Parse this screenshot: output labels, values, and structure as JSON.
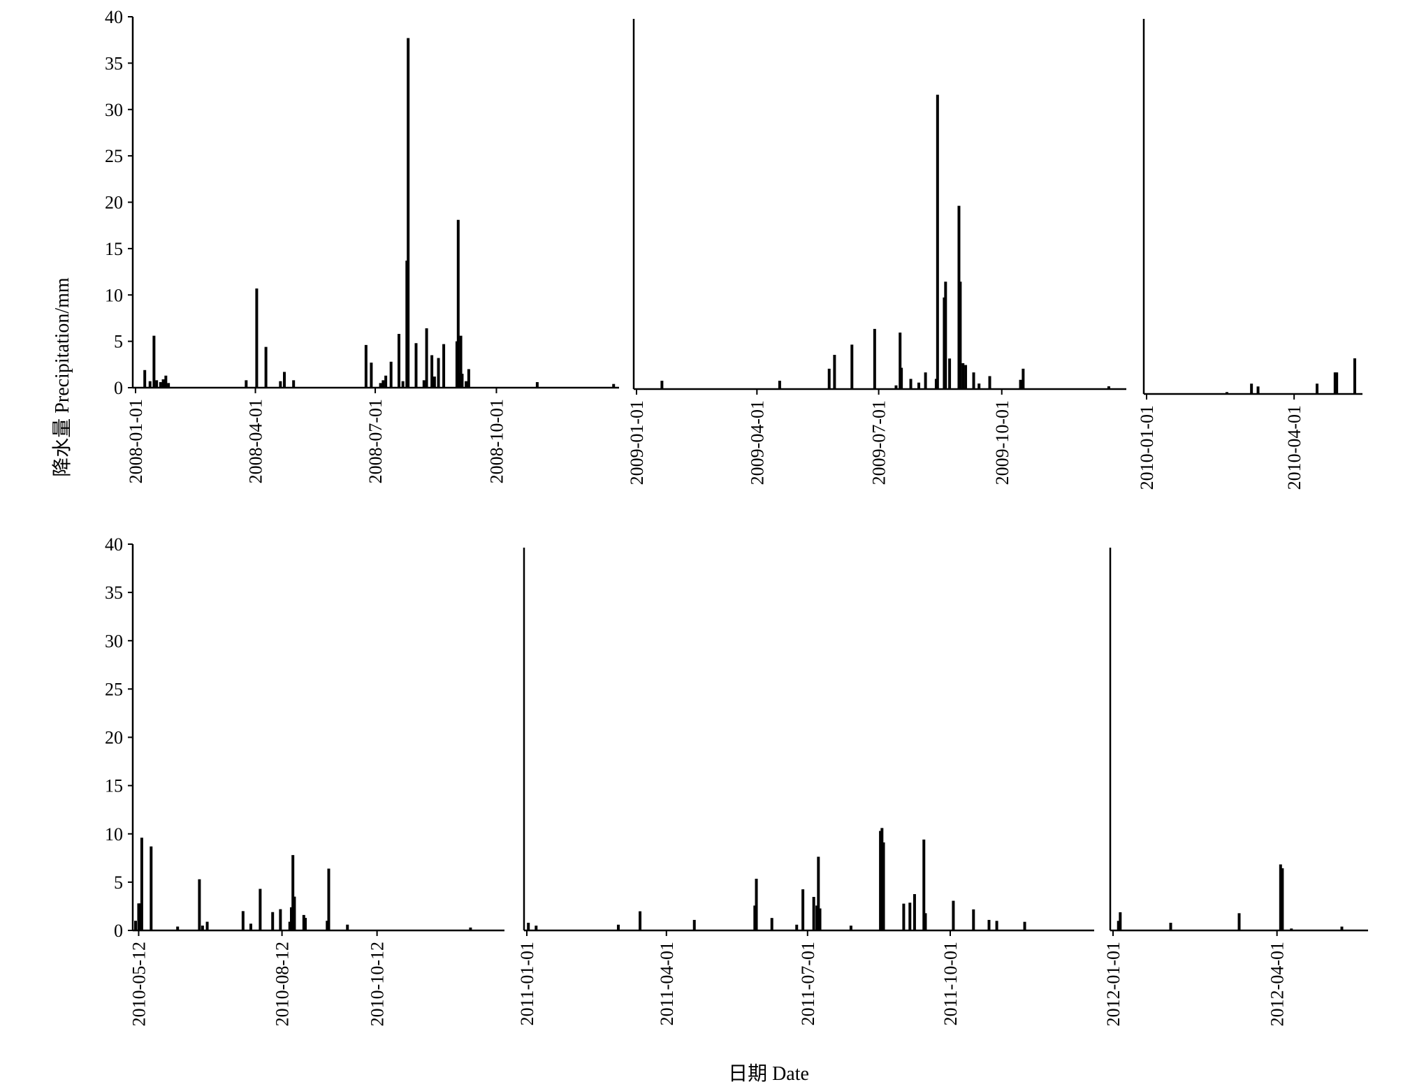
{
  "chart_data": {
    "type": "bar",
    "title": "",
    "ylabel": "降水量 Precipitation/mm",
    "xlabel": "日期 Date",
    "ylim": [
      0,
      40
    ],
    "y_ticks": [
      0,
      5,
      10,
      15,
      20,
      25,
      30,
      35,
      40
    ],
    "grid": false,
    "legend": "none",
    "bar_color": "#000000",
    "panels": [
      {
        "x_range": [
          "2008-01-01",
          "2008-12-31"
        ],
        "x_ticks": [
          "2008-01-01",
          "2008-04-01",
          "2008-07-01",
          "2008-10-01"
        ],
        "events": [
          {
            "x": "2008-01-08",
            "y": 1.9
          },
          {
            "x": "2008-01-12",
            "y": 0.7
          },
          {
            "x": "2008-01-15",
            "y": 5.6
          },
          {
            "x": "2008-01-17",
            "y": 0.8
          },
          {
            "x": "2008-01-20",
            "y": 0.6
          },
          {
            "x": "2008-01-22",
            "y": 0.9
          },
          {
            "x": "2008-01-24",
            "y": 1.3
          },
          {
            "x": "2008-01-26",
            "y": 0.5
          },
          {
            "x": "2008-03-25",
            "y": 0.8
          },
          {
            "x": "2008-04-02",
            "y": 10.7
          },
          {
            "x": "2008-04-09",
            "y": 4.4
          },
          {
            "x": "2008-04-20",
            "y": 0.7
          },
          {
            "x": "2008-04-23",
            "y": 1.7
          },
          {
            "x": "2008-04-30",
            "y": 0.8
          },
          {
            "x": "2008-06-24",
            "y": 4.6
          },
          {
            "x": "2008-06-28",
            "y": 2.7
          },
          {
            "x": "2008-07-05",
            "y": 0.5
          },
          {
            "x": "2008-07-07",
            "y": 0.8
          },
          {
            "x": "2008-07-09",
            "y": 1.3
          },
          {
            "x": "2008-07-13",
            "y": 2.8
          },
          {
            "x": "2008-07-19",
            "y": 5.8
          },
          {
            "x": "2008-07-22",
            "y": 0.7
          },
          {
            "x": "2008-07-25",
            "y": 13.7
          },
          {
            "x": "2008-07-26",
            "y": 37.7
          },
          {
            "x": "2008-08-01",
            "y": 4.8
          },
          {
            "x": "2008-08-07",
            "y": 0.8
          },
          {
            "x": "2008-08-09",
            "y": 6.4
          },
          {
            "x": "2008-08-13",
            "y": 3.5
          },
          {
            "x": "2008-08-15",
            "y": 1.2
          },
          {
            "x": "2008-08-18",
            "y": 3.2
          },
          {
            "x": "2008-08-22",
            "y": 4.7
          },
          {
            "x": "2008-09-01",
            "y": 5.0
          },
          {
            "x": "2008-09-02",
            "y": 18.1
          },
          {
            "x": "2008-09-03",
            "y": 1.6
          },
          {
            "x": "2008-09-04",
            "y": 5.6
          },
          {
            "x": "2008-09-05",
            "y": 1.5
          },
          {
            "x": "2008-09-08",
            "y": 0.7
          },
          {
            "x": "2008-09-10",
            "y": 2.0
          },
          {
            "x": "2008-11-01",
            "y": 0.6
          },
          {
            "x": "2008-12-29",
            "y": 0.4
          }
        ]
      },
      {
        "x_range": [
          "2009-01-01",
          "2009-12-31"
        ],
        "x_ticks": [
          "2009-01-01",
          "2009-04-01",
          "2009-07-01",
          "2009-10-01"
        ],
        "y_axis_clipped_label": "40",
        "events": [
          {
            "x": "2009-01-20",
            "y": 0.9
          },
          {
            "x": "2009-04-18",
            "y": 0.9
          },
          {
            "x": "2009-05-25",
            "y": 2.2
          },
          {
            "x": "2009-05-29",
            "y": 3.7
          },
          {
            "x": "2009-06-11",
            "y": 4.8
          },
          {
            "x": "2009-06-28",
            "y": 6.5
          },
          {
            "x": "2009-07-14",
            "y": 0.4
          },
          {
            "x": "2009-07-17",
            "y": 6.1
          },
          {
            "x": "2009-07-18",
            "y": 2.3
          },
          {
            "x": "2009-07-25",
            "y": 1.1
          },
          {
            "x": "2009-07-31",
            "y": 0.7
          },
          {
            "x": "2009-08-05",
            "y": 1.8
          },
          {
            "x": "2009-08-13",
            "y": 1.1
          },
          {
            "x": "2009-08-14",
            "y": 31.8
          },
          {
            "x": "2009-08-19",
            "y": 9.9
          },
          {
            "x": "2009-08-20",
            "y": 11.6
          },
          {
            "x": "2009-08-23",
            "y": 3.3
          },
          {
            "x": "2009-08-30",
            "y": 19.8
          },
          {
            "x": "2009-08-31",
            "y": 11.6
          },
          {
            "x": "2009-09-02",
            "y": 2.8
          },
          {
            "x": "2009-09-04",
            "y": 2.6
          },
          {
            "x": "2009-09-10",
            "y": 1.8
          },
          {
            "x": "2009-09-14",
            "y": 0.6
          },
          {
            "x": "2009-09-22",
            "y": 1.4
          },
          {
            "x": "2009-10-15",
            "y": 1.0
          },
          {
            "x": "2009-10-17",
            "y": 2.2
          },
          {
            "x": "2009-12-20",
            "y": 0.3
          }
        ]
      },
      {
        "x_range": [
          "2010-01-01",
          "2010-05-11"
        ],
        "x_ticks": [
          "2010-01-01",
          "2010-04-01"
        ],
        "y_axis_clipped_label": "40",
        "events": [
          {
            "x": "2010-02-19",
            "y": 0.2
          },
          {
            "x": "2010-03-06",
            "y": 1.1
          },
          {
            "x": "2010-03-10",
            "y": 0.8
          },
          {
            "x": "2010-04-15",
            "y": 1.1
          },
          {
            "x": "2010-04-26",
            "y": 2.3
          },
          {
            "x": "2010-04-27",
            "y": 2.3
          },
          {
            "x": "2010-05-08",
            "y": 3.8
          }
        ]
      },
      {
        "x_range": [
          "2010-05-10",
          "2010-12-31"
        ],
        "x_ticks": [
          "2010-05-12",
          "2010-08-12",
          "2010-10-12"
        ],
        "events": [
          {
            "x": "2010-05-10",
            "y": 1.0
          },
          {
            "x": "2010-05-12",
            "y": 2.8
          },
          {
            "x": "2010-05-13",
            "y": 2.8
          },
          {
            "x": "2010-05-14",
            "y": 9.6
          },
          {
            "x": "2010-05-20",
            "y": 8.7
          },
          {
            "x": "2010-06-06",
            "y": 0.4
          },
          {
            "x": "2010-06-20",
            "y": 5.3
          },
          {
            "x": "2010-06-22",
            "y": 0.5
          },
          {
            "x": "2010-06-25",
            "y": 0.9
          },
          {
            "x": "2010-07-18",
            "y": 2.0
          },
          {
            "x": "2010-07-23",
            "y": 0.7
          },
          {
            "x": "2010-07-29",
            "y": 4.3
          },
          {
            "x": "2010-08-06",
            "y": 1.9
          },
          {
            "x": "2010-08-11",
            "y": 2.2
          },
          {
            "x": "2010-08-17",
            "y": 0.9
          },
          {
            "x": "2010-08-18",
            "y": 2.4
          },
          {
            "x": "2010-08-19",
            "y": 7.8
          },
          {
            "x": "2010-08-20",
            "y": 3.5
          },
          {
            "x": "2010-08-26",
            "y": 1.6
          },
          {
            "x": "2010-08-27",
            "y": 1.3
          },
          {
            "x": "2010-09-10",
            "y": 1.0
          },
          {
            "x": "2010-09-11",
            "y": 6.4
          },
          {
            "x": "2010-09-23",
            "y": 0.6
          },
          {
            "x": "2010-12-11",
            "y": 0.3
          }
        ]
      },
      {
        "x_range": [
          "2011-01-01",
          "2011-12-31"
        ],
        "x_ticks": [
          "2011-01-01",
          "2011-04-01",
          "2011-07-01",
          "2011-10-01"
        ],
        "y_axis_clipped_label": "40",
        "events": [
          {
            "x": "2011-01-02",
            "y": 0.8
          },
          {
            "x": "2011-01-07",
            "y": 0.5
          },
          {
            "x": "2011-03-01",
            "y": 0.6
          },
          {
            "x": "2011-03-15",
            "y": 2.0
          },
          {
            "x": "2011-04-19",
            "y": 1.1
          },
          {
            "x": "2011-05-28",
            "y": 2.6
          },
          {
            "x": "2011-05-29",
            "y": 5.4
          },
          {
            "x": "2011-06-08",
            "y": 1.3
          },
          {
            "x": "2011-06-24",
            "y": 0.6
          },
          {
            "x": "2011-06-28",
            "y": 4.3
          },
          {
            "x": "2011-07-05",
            "y": 3.5
          },
          {
            "x": "2011-07-07",
            "y": 2.6
          },
          {
            "x": "2011-07-08",
            "y": 7.7
          },
          {
            "x": "2011-07-09",
            "y": 2.3
          },
          {
            "x": "2011-07-29",
            "y": 0.5
          },
          {
            "x": "2011-08-17",
            "y": 10.4
          },
          {
            "x": "2011-08-18",
            "y": 10.7
          },
          {
            "x": "2011-08-19",
            "y": 9.2
          },
          {
            "x": "2011-09-01",
            "y": 2.8
          },
          {
            "x": "2011-09-05",
            "y": 2.9
          },
          {
            "x": "2011-09-08",
            "y": 3.8
          },
          {
            "x": "2011-09-14",
            "y": 9.5
          },
          {
            "x": "2011-09-15",
            "y": 1.8
          },
          {
            "x": "2011-10-03",
            "y": 3.1
          },
          {
            "x": "2011-10-16",
            "y": 2.2
          },
          {
            "x": "2011-10-26",
            "y": 1.1
          },
          {
            "x": "2011-10-31",
            "y": 1.0
          },
          {
            "x": "2011-11-18",
            "y": 0.9
          }
        ]
      },
      {
        "x_range": [
          "2012-01-01",
          "2012-05-20"
        ],
        "x_ticks": [
          "2012-01-01",
          "2012-04-01"
        ],
        "y_axis_clipped_label": "40",
        "events": [
          {
            "x": "2012-01-04",
            "y": 1.0
          },
          {
            "x": "2012-01-05",
            "y": 1.9
          },
          {
            "x": "2012-02-02",
            "y": 0.8
          },
          {
            "x": "2012-03-11",
            "y": 1.8
          },
          {
            "x": "2012-04-03",
            "y": 6.9
          },
          {
            "x": "2012-04-04",
            "y": 6.5
          },
          {
            "x": "2012-04-09",
            "y": 0.2
          },
          {
            "x": "2012-05-07",
            "y": 0.4
          }
        ]
      }
    ]
  }
}
